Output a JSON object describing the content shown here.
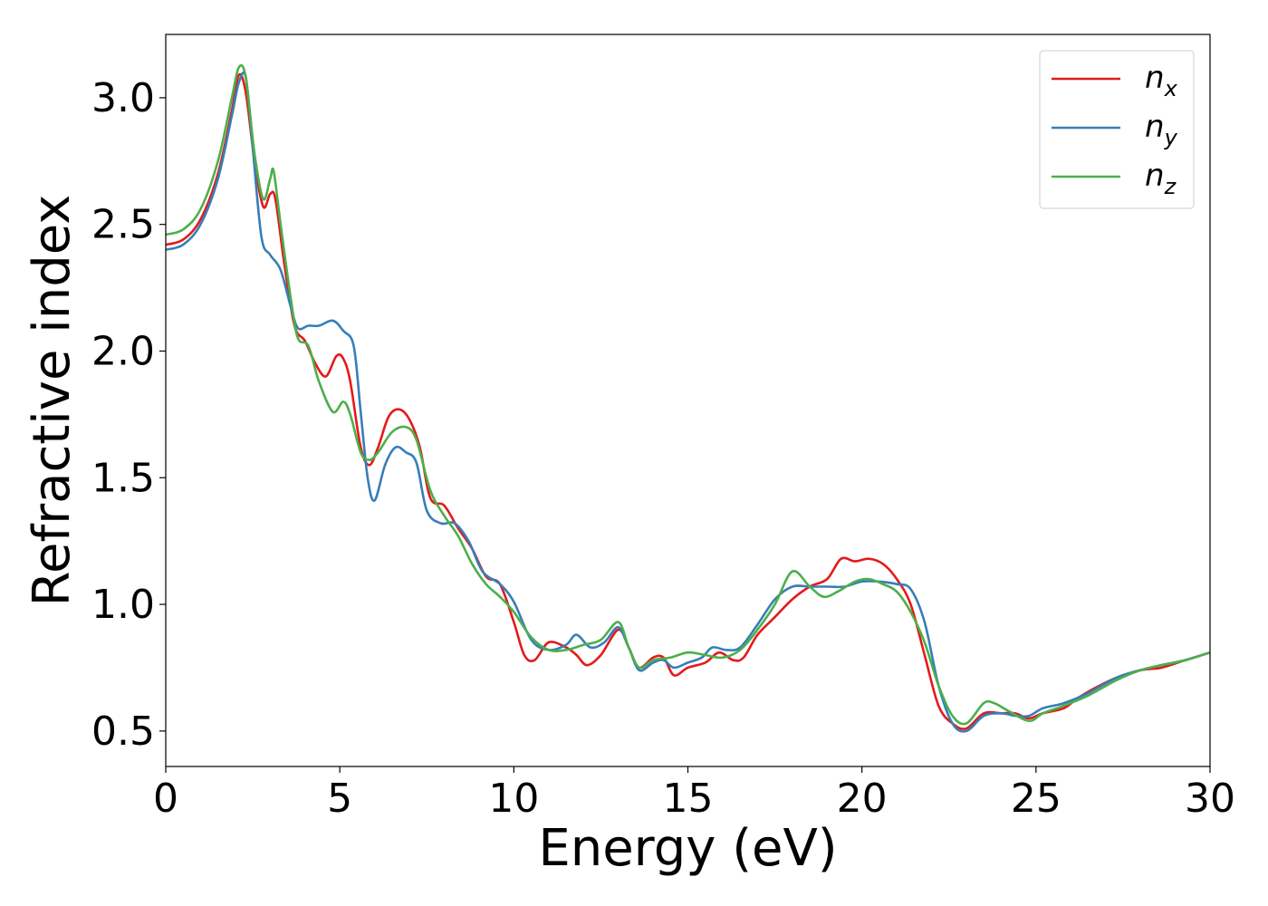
{
  "chart_data": {
    "type": "line",
    "title": "",
    "xlabel": "Energy (eV)",
    "ylabel": "Refractive index",
    "xlim": [
      0,
      30
    ],
    "ylim": [
      0.36,
      3.25
    ],
    "xticks": [
      0,
      5,
      10,
      15,
      20,
      25,
      30
    ],
    "xtick_labels": [
      "0",
      "5",
      "10",
      "15",
      "20",
      "25",
      "30"
    ],
    "yticks": [
      0.5,
      1.0,
      1.5,
      2.0,
      2.5,
      3.0
    ],
    "ytick_labels": [
      "0.5",
      "1.0",
      "1.5",
      "2.0",
      "2.5",
      "3.0"
    ],
    "grid": false,
    "legend_position": "top-right",
    "series": [
      {
        "name": "n_x",
        "label_base": "n",
        "label_sub": "x",
        "color": "#e41a1c",
        "points": [
          [
            0,
            2.42
          ],
          [
            0.5,
            2.44
          ],
          [
            1.0,
            2.52
          ],
          [
            1.5,
            2.7
          ],
          [
            1.9,
            2.95
          ],
          [
            2.1,
            3.09
          ],
          [
            2.3,
            3.02
          ],
          [
            2.55,
            2.75
          ],
          [
            2.8,
            2.57
          ],
          [
            3.0,
            2.62
          ],
          [
            3.15,
            2.6
          ],
          [
            3.4,
            2.35
          ],
          [
            3.7,
            2.1
          ],
          [
            4.0,
            2.04
          ],
          [
            4.3,
            1.95
          ],
          [
            4.6,
            1.9
          ],
          [
            4.9,
            1.98
          ],
          [
            5.1,
            1.97
          ],
          [
            5.3,
            1.88
          ],
          [
            5.6,
            1.62
          ],
          [
            5.85,
            1.55
          ],
          [
            6.1,
            1.62
          ],
          [
            6.4,
            1.74
          ],
          [
            6.7,
            1.77
          ],
          [
            7.0,
            1.73
          ],
          [
            7.3,
            1.62
          ],
          [
            7.6,
            1.42
          ],
          [
            8.0,
            1.39
          ],
          [
            8.4,
            1.3
          ],
          [
            8.8,
            1.22
          ],
          [
            9.2,
            1.11
          ],
          [
            9.6,
            1.08
          ],
          [
            10.0,
            0.93
          ],
          [
            10.3,
            0.8
          ],
          [
            10.6,
            0.78
          ],
          [
            11.0,
            0.85
          ],
          [
            11.5,
            0.83
          ],
          [
            11.8,
            0.8
          ],
          [
            12.1,
            0.76
          ],
          [
            12.5,
            0.8
          ],
          [
            13.0,
            0.9
          ],
          [
            13.3,
            0.83
          ],
          [
            13.6,
            0.75
          ],
          [
            14.0,
            0.79
          ],
          [
            14.3,
            0.79
          ],
          [
            14.6,
            0.72
          ],
          [
            15.0,
            0.75
          ],
          [
            15.5,
            0.77
          ],
          [
            15.9,
            0.81
          ],
          [
            16.3,
            0.78
          ],
          [
            16.6,
            0.79
          ],
          [
            17.0,
            0.88
          ],
          [
            17.5,
            0.95
          ],
          [
            18.0,
            1.02
          ],
          [
            18.5,
            1.07
          ],
          [
            19.0,
            1.1
          ],
          [
            19.4,
            1.18
          ],
          [
            19.8,
            1.17
          ],
          [
            20.2,
            1.18
          ],
          [
            20.6,
            1.16
          ],
          [
            21.0,
            1.1
          ],
          [
            21.4,
            1.0
          ],
          [
            21.8,
            0.8
          ],
          [
            22.2,
            0.6
          ],
          [
            22.6,
            0.53
          ],
          [
            23.0,
            0.51
          ],
          [
            23.5,
            0.57
          ],
          [
            24.0,
            0.57
          ],
          [
            24.4,
            0.57
          ],
          [
            24.8,
            0.55
          ],
          [
            25.2,
            0.57
          ],
          [
            25.8,
            0.59
          ],
          [
            26.2,
            0.63
          ],
          [
            26.7,
            0.67
          ],
          [
            27.3,
            0.71
          ],
          [
            28.0,
            0.74
          ],
          [
            28.6,
            0.75
          ],
          [
            29.3,
            0.78
          ],
          [
            30.0,
            0.81
          ]
        ]
      },
      {
        "name": "n_y",
        "label_base": "n",
        "label_sub": "y",
        "color": "#377eb8",
        "points": [
          [
            0,
            2.4
          ],
          [
            0.5,
            2.42
          ],
          [
            1.0,
            2.5
          ],
          [
            1.5,
            2.68
          ],
          [
            1.9,
            2.93
          ],
          [
            2.1,
            3.06
          ],
          [
            2.3,
            3.08
          ],
          [
            2.5,
            2.8
          ],
          [
            2.75,
            2.45
          ],
          [
            3.0,
            2.38
          ],
          [
            3.3,
            2.32
          ],
          [
            3.6,
            2.17
          ],
          [
            3.8,
            2.09
          ],
          [
            4.1,
            2.1
          ],
          [
            4.4,
            2.1
          ],
          [
            4.8,
            2.12
          ],
          [
            5.1,
            2.08
          ],
          [
            5.4,
            2.02
          ],
          [
            5.6,
            1.76
          ],
          [
            5.8,
            1.5
          ],
          [
            6.0,
            1.41
          ],
          [
            6.3,
            1.55
          ],
          [
            6.6,
            1.62
          ],
          [
            6.9,
            1.6
          ],
          [
            7.2,
            1.56
          ],
          [
            7.5,
            1.37
          ],
          [
            7.9,
            1.32
          ],
          [
            8.3,
            1.32
          ],
          [
            8.7,
            1.25
          ],
          [
            9.1,
            1.13
          ],
          [
            9.6,
            1.08
          ],
          [
            10.0,
            1.01
          ],
          [
            10.5,
            0.86
          ],
          [
            11.0,
            0.82
          ],
          [
            11.5,
            0.84
          ],
          [
            11.8,
            0.88
          ],
          [
            12.2,
            0.83
          ],
          [
            12.6,
            0.85
          ],
          [
            13.0,
            0.91
          ],
          [
            13.3,
            0.83
          ],
          [
            13.6,
            0.74
          ],
          [
            14.0,
            0.77
          ],
          [
            14.3,
            0.78
          ],
          [
            14.6,
            0.75
          ],
          [
            15.0,
            0.77
          ],
          [
            15.4,
            0.79
          ],
          [
            15.7,
            0.83
          ],
          [
            16.1,
            0.82
          ],
          [
            16.5,
            0.83
          ],
          [
            17.0,
            0.92
          ],
          [
            17.5,
            1.02
          ],
          [
            18.0,
            1.07
          ],
          [
            18.5,
            1.07
          ],
          [
            19.0,
            1.07
          ],
          [
            19.5,
            1.07
          ],
          [
            20.0,
            1.09
          ],
          [
            20.5,
            1.09
          ],
          [
            21.0,
            1.08
          ],
          [
            21.4,
            1.06
          ],
          [
            21.8,
            0.93
          ],
          [
            22.2,
            0.68
          ],
          [
            22.6,
            0.53
          ],
          [
            23.0,
            0.5
          ],
          [
            23.5,
            0.56
          ],
          [
            24.0,
            0.57
          ],
          [
            24.4,
            0.56
          ],
          [
            24.8,
            0.56
          ],
          [
            25.2,
            0.59
          ],
          [
            25.8,
            0.61
          ],
          [
            26.5,
            0.65
          ],
          [
            27.3,
            0.71
          ],
          [
            28.0,
            0.74
          ],
          [
            28.6,
            0.76
          ],
          [
            29.3,
            0.78
          ],
          [
            30.0,
            0.81
          ]
        ]
      },
      {
        "name": "n_z",
        "label_base": "n",
        "label_sub": "z",
        "color": "#4daf4a",
        "points": [
          [
            0,
            2.46
          ],
          [
            0.5,
            2.48
          ],
          [
            1.0,
            2.56
          ],
          [
            1.5,
            2.75
          ],
          [
            1.9,
            3.0
          ],
          [
            2.1,
            3.12
          ],
          [
            2.3,
            3.08
          ],
          [
            2.55,
            2.78
          ],
          [
            2.8,
            2.6
          ],
          [
            3.0,
            2.68
          ],
          [
            3.1,
            2.71
          ],
          [
            3.3,
            2.5
          ],
          [
            3.6,
            2.2
          ],
          [
            3.8,
            2.05
          ],
          [
            4.1,
            2.02
          ],
          [
            4.4,
            1.88
          ],
          [
            4.8,
            1.76
          ],
          [
            5.1,
            1.8
          ],
          [
            5.3,
            1.75
          ],
          [
            5.6,
            1.6
          ],
          [
            5.85,
            1.57
          ],
          [
            6.1,
            1.6
          ],
          [
            6.5,
            1.68
          ],
          [
            6.9,
            1.7
          ],
          [
            7.2,
            1.65
          ],
          [
            7.6,
            1.45
          ],
          [
            8.0,
            1.35
          ],
          [
            8.4,
            1.27
          ],
          [
            8.8,
            1.16
          ],
          [
            9.2,
            1.08
          ],
          [
            9.6,
            1.03
          ],
          [
            10.0,
            0.97
          ],
          [
            10.5,
            0.87
          ],
          [
            11.0,
            0.82
          ],
          [
            11.5,
            0.82
          ],
          [
            12.0,
            0.84
          ],
          [
            12.5,
            0.86
          ],
          [
            13.0,
            0.93
          ],
          [
            13.3,
            0.83
          ],
          [
            13.6,
            0.75
          ],
          [
            14.0,
            0.78
          ],
          [
            14.5,
            0.79
          ],
          [
            15.0,
            0.81
          ],
          [
            15.5,
            0.8
          ],
          [
            16.0,
            0.79
          ],
          [
            16.5,
            0.82
          ],
          [
            17.0,
            0.9
          ],
          [
            17.5,
            1.0
          ],
          [
            18.0,
            1.13
          ],
          [
            18.5,
            1.07
          ],
          [
            18.9,
            1.03
          ],
          [
            19.3,
            1.05
          ],
          [
            19.8,
            1.09
          ],
          [
            20.2,
            1.1
          ],
          [
            20.6,
            1.08
          ],
          [
            21.0,
            1.05
          ],
          [
            21.4,
            0.97
          ],
          [
            21.8,
            0.85
          ],
          [
            22.2,
            0.68
          ],
          [
            22.6,
            0.56
          ],
          [
            23.0,
            0.53
          ],
          [
            23.5,
            0.61
          ],
          [
            23.8,
            0.61
          ],
          [
            24.2,
            0.58
          ],
          [
            24.8,
            0.54
          ],
          [
            25.2,
            0.57
          ],
          [
            25.8,
            0.6
          ],
          [
            26.5,
            0.64
          ],
          [
            27.3,
            0.7
          ],
          [
            28.0,
            0.74
          ],
          [
            28.6,
            0.76
          ],
          [
            29.3,
            0.78
          ],
          [
            30.0,
            0.81
          ]
        ]
      }
    ]
  }
}
